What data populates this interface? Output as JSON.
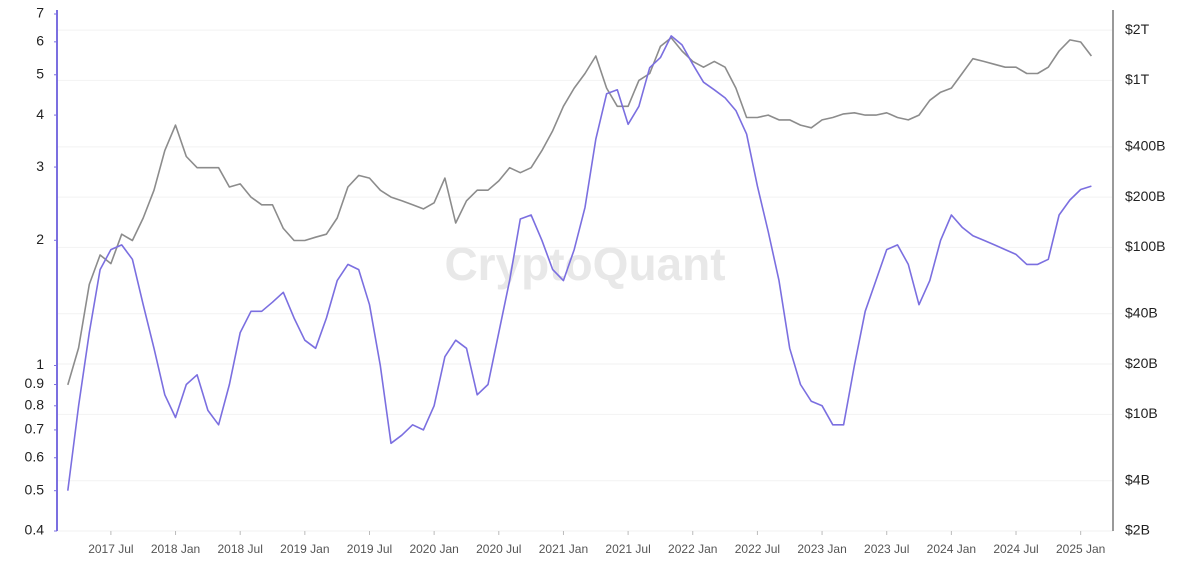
{
  "chart_data": {
    "type": "line",
    "watermark": "CryptoQuant",
    "x": [
      "2017-03",
      "2017-04",
      "2017-05",
      "2017-06",
      "2017-07",
      "2017-08",
      "2017-09",
      "2017-10",
      "2017-11",
      "2017-12",
      "2018-01",
      "2018-02",
      "2018-03",
      "2018-04",
      "2018-05",
      "2018-06",
      "2018-07",
      "2018-08",
      "2018-09",
      "2018-10",
      "2018-11",
      "2018-12",
      "2019-01",
      "2019-02",
      "2019-03",
      "2019-04",
      "2019-05",
      "2019-06",
      "2019-07",
      "2019-08",
      "2019-09",
      "2019-10",
      "2019-11",
      "2019-12",
      "2020-01",
      "2020-02",
      "2020-03",
      "2020-04",
      "2020-05",
      "2020-06",
      "2020-07",
      "2020-08",
      "2020-09",
      "2020-10",
      "2020-11",
      "2020-12",
      "2021-01",
      "2021-02",
      "2021-03",
      "2021-04",
      "2021-05",
      "2021-06",
      "2021-07",
      "2021-08",
      "2021-09",
      "2021-10",
      "2021-11",
      "2021-12",
      "2022-01",
      "2022-02",
      "2022-03",
      "2022-04",
      "2022-05",
      "2022-06",
      "2022-07",
      "2022-08",
      "2022-09",
      "2022-10",
      "2022-11",
      "2022-12",
      "2023-01",
      "2023-02",
      "2023-03",
      "2023-04",
      "2023-05",
      "2023-06",
      "2023-07",
      "2023-08",
      "2023-09",
      "2023-10",
      "2023-11",
      "2023-12",
      "2024-01",
      "2024-02",
      "2024-03",
      "2024-04",
      "2024-05",
      "2024-06",
      "2024-07",
      "2024-08",
      "2024-09",
      "2024-10",
      "2024-11",
      "2024-12",
      "2025-01",
      "2025-02"
    ],
    "series": [
      {
        "color": "#7b6fe0",
        "axis": "y",
        "values": [
          0.5,
          0.8,
          1.2,
          1.7,
          1.9,
          1.95,
          1.8,
          1.4,
          1.1,
          0.85,
          0.75,
          0.9,
          0.95,
          0.78,
          0.72,
          0.9,
          1.2,
          1.35,
          1.35,
          1.42,
          1.5,
          1.3,
          1.15,
          1.1,
          1.3,
          1.6,
          1.75,
          1.7,
          1.4,
          1.0,
          0.65,
          0.68,
          0.72,
          0.7,
          0.8,
          1.05,
          1.15,
          1.1,
          0.85,
          0.9,
          1.2,
          1.6,
          2.25,
          2.3,
          2.0,
          1.7,
          1.6,
          1.9,
          2.4,
          3.5,
          4.5,
          4.6,
          3.8,
          4.2,
          5.2,
          5.5,
          6.2,
          5.9,
          5.3,
          4.8,
          4.6,
          4.4,
          4.1,
          3.6,
          2.7,
          2.1,
          1.6,
          1.1,
          0.9,
          0.82,
          0.8,
          0.72,
          0.72,
          1.0,
          1.35,
          1.6,
          1.9,
          1.95,
          1.75,
          1.4,
          1.6,
          2.0,
          2.3,
          2.15,
          2.05,
          2.0,
          1.95,
          1.9,
          1.85,
          1.75,
          1.75,
          1.8,
          2.3,
          2.5,
          2.65,
          2.7
        ]
      },
      {
        "color": "#8c8c8c",
        "axis": "y2",
        "values": [
          15000000000,
          25000000000,
          60000000000,
          90000000000,
          80000000000,
          120000000000,
          110000000000,
          150000000000,
          220000000000,
          380000000000,
          540000000000,
          350000000000,
          300000000000,
          300000000000,
          300000000000,
          230000000000,
          240000000000,
          200000000000,
          180000000000,
          180000000000,
          130000000000,
          110000000000,
          110000000000,
          115000000000,
          120000000000,
          150000000000,
          230000000000,
          270000000000,
          260000000000,
          220000000000,
          200000000000,
          190000000000,
          180000000000,
          170000000000,
          185000000000,
          260000000000,
          140000000000,
          190000000000,
          220000000000,
          220000000000,
          250000000000,
          300000000000,
          280000000000,
          300000000000,
          380000000000,
          500000000000,
          700000000000,
          900000000000,
          1100000000000,
          1400000000000,
          900000000000,
          700000000000,
          700000000000,
          1000000000000,
          1100000000000,
          1600000000000,
          1800000000000,
          1500000000000,
          1300000000000,
          1200000000000,
          1300000000000,
          1200000000000,
          900000000000,
          600000000000,
          600000000000,
          620000000000,
          580000000000,
          580000000000,
          540000000000,
          520000000000,
          580000000000,
          600000000000,
          630000000000,
          640000000000,
          620000000000,
          620000000000,
          640000000000,
          600000000000,
          580000000000,
          620000000000,
          760000000000,
          850000000000,
          900000000000,
          1100000000000,
          1350000000000,
          1300000000000,
          1250000000000,
          1200000000000,
          1200000000000,
          1100000000000,
          1100000000000,
          1200000000000,
          1500000000000,
          1750000000000,
          1700000000000,
          1400000000000
        ]
      }
    ],
    "xlim": [
      "2017-02",
      "2025-04"
    ],
    "xticks": [
      {
        "value": "2017-07",
        "label": "2017 Jul"
      },
      {
        "value": "2018-01",
        "label": "2018 Jan"
      },
      {
        "value": "2018-07",
        "label": "2018 Jul"
      },
      {
        "value": "2019-01",
        "label": "2019 Jan"
      },
      {
        "value": "2019-07",
        "label": "2019 Jul"
      },
      {
        "value": "2020-01",
        "label": "2020 Jan"
      },
      {
        "value": "2020-07",
        "label": "2020 Jul"
      },
      {
        "value": "2021-01",
        "label": "2021 Jan"
      },
      {
        "value": "2021-07",
        "label": "2021 Jul"
      },
      {
        "value": "2022-01",
        "label": "2022 Jan"
      },
      {
        "value": "2022-07",
        "label": "2022 Jul"
      },
      {
        "value": "2023-01",
        "label": "2023 Jan"
      },
      {
        "value": "2023-07",
        "label": "2023 Jul"
      },
      {
        "value": "2024-01",
        "label": "2024 Jan"
      },
      {
        "value": "2024-07",
        "label": "2024 Jul"
      },
      {
        "value": "2025-01",
        "label": "2025 Jan"
      }
    ],
    "ylim": [
      0.4,
      7
    ],
    "yscale": "log",
    "yticks": [
      0.4,
      0.5,
      0.6,
      0.7,
      0.8,
      0.9,
      1,
      2,
      3,
      4,
      5,
      6,
      7
    ],
    "y2lim": [
      2000000000,
      2500000000000
    ],
    "y2scale": "log",
    "y2ticks": [
      {
        "value": 2000000000,
        "label": "$2B"
      },
      {
        "value": 4000000000,
        "label": "$4B"
      },
      {
        "value": 10000000000,
        "label": "$10B"
      },
      {
        "value": 20000000000,
        "label": "$20B"
      },
      {
        "value": 40000000000,
        "label": "$40B"
      },
      {
        "value": 100000000000,
        "label": "$100B"
      },
      {
        "value": 200000000000,
        "label": "$200B"
      },
      {
        "value": 400000000000,
        "label": "$400B"
      },
      {
        "value": 1000000000000,
        "label": "$1T"
      },
      {
        "value": 2000000000000,
        "label": "$2T"
      }
    ],
    "grid": true,
    "axis_color": "#7b6fe0",
    "y2_axis_color": "#999999"
  }
}
